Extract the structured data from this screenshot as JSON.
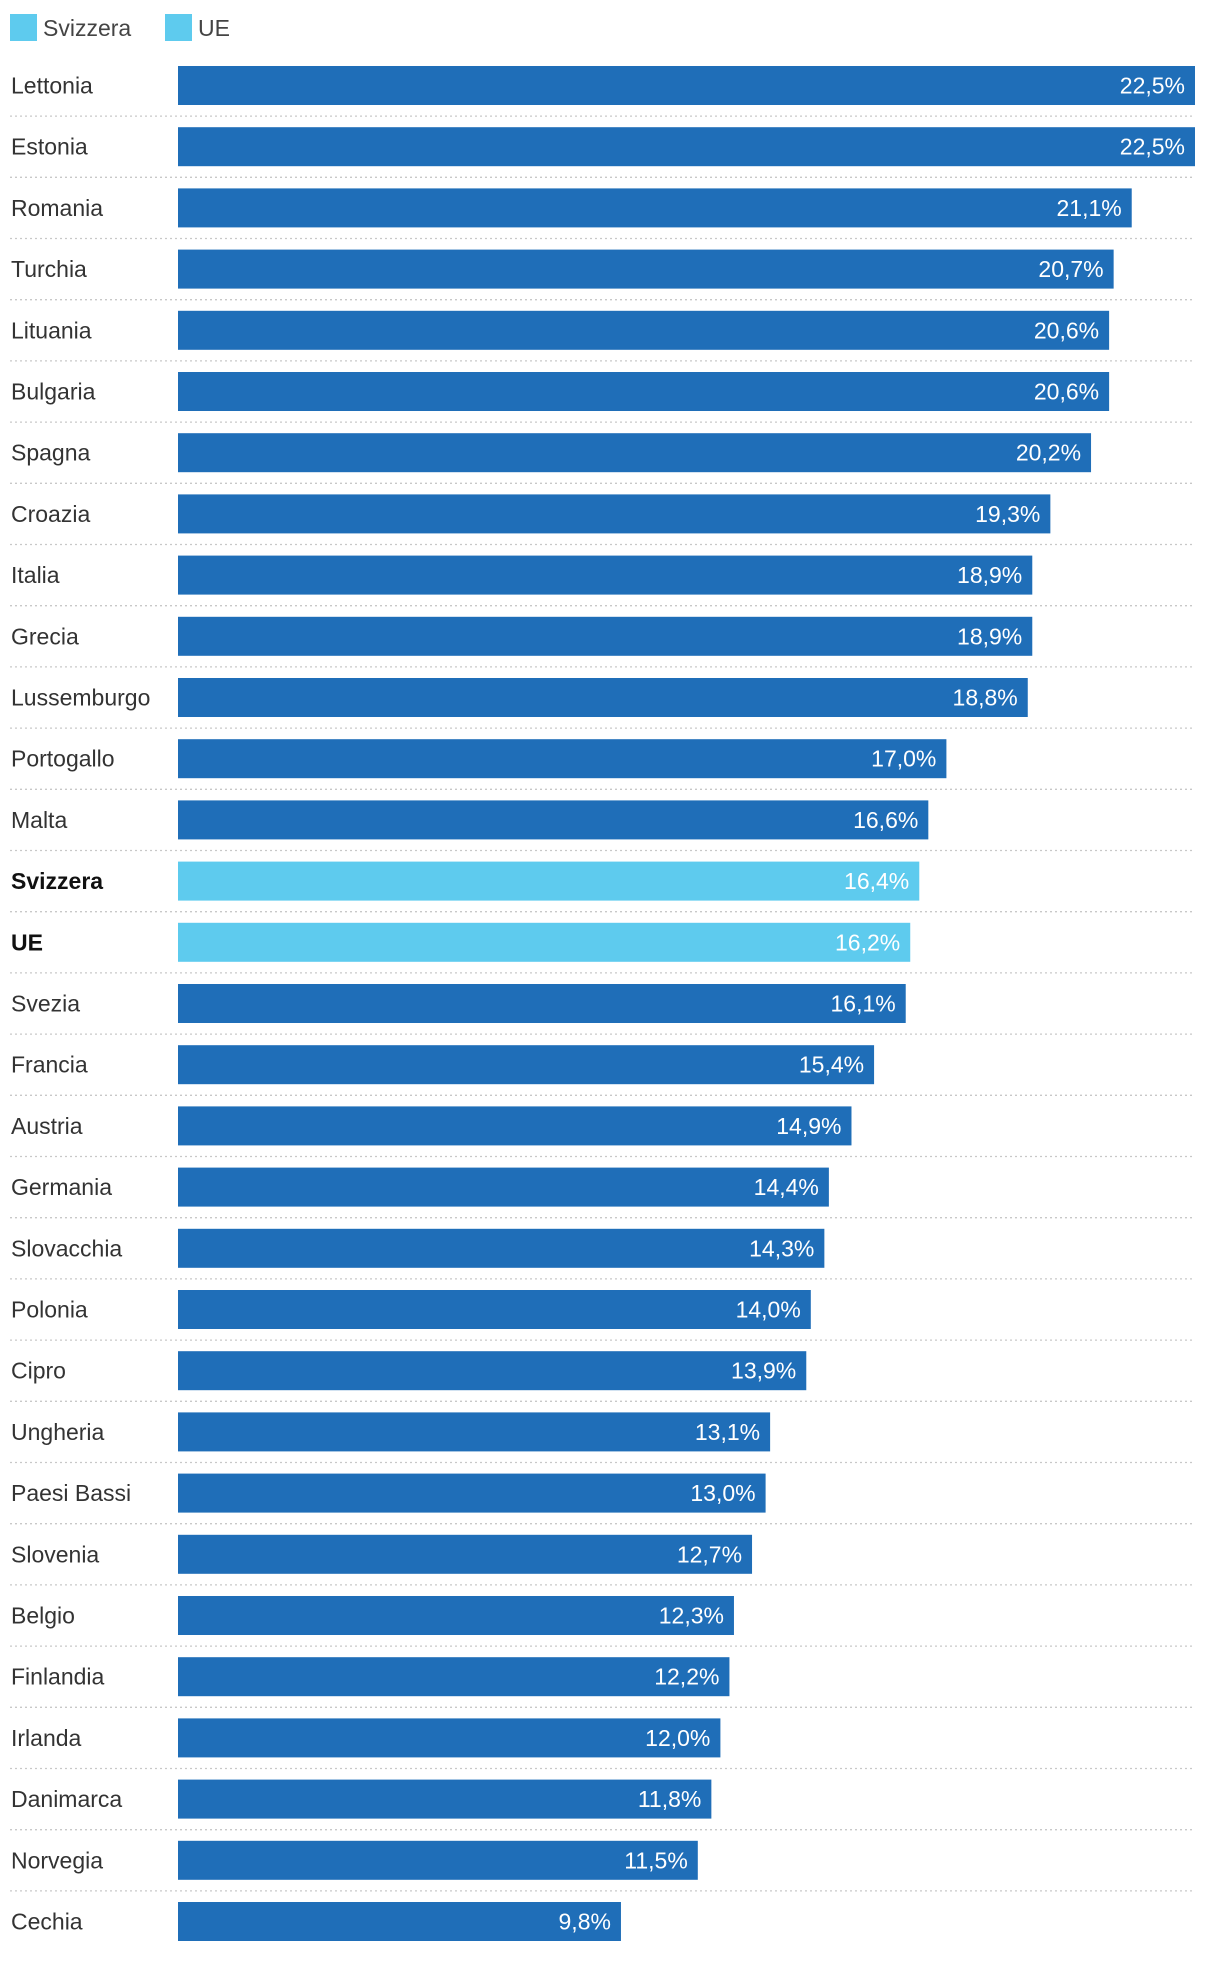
{
  "legend": [
    {
      "label": "Svizzera",
      "color": "#5ecbee"
    },
    {
      "label": "UE",
      "color": "#5ecbee"
    }
  ],
  "colors": {
    "default_bar": "#1f6eb8",
    "highlight_bar": "#5ecbee",
    "value_text": "#ffffff"
  },
  "chart_data": {
    "type": "bar",
    "orientation": "horizontal",
    "categories": [
      "Lettonia",
      "Estonia",
      "Romania",
      "Turchia",
      "Lituania",
      "Bulgaria",
      "Spagna",
      "Croazia",
      "Italia",
      "Grecia",
      "Lussemburgo",
      "Portogallo",
      "Malta",
      "Svizzera",
      "UE",
      "Svezia",
      "Francia",
      "Austria",
      "Germania",
      "Slovacchia",
      "Polonia",
      "Cipro",
      "Ungheria",
      "Paesi Bassi",
      "Slovenia",
      "Belgio",
      "Finlandia",
      "Irlanda",
      "Danimarca",
      "Norvegia",
      "Cechia"
    ],
    "values": [
      22.5,
      22.5,
      21.1,
      20.7,
      20.6,
      20.6,
      20.2,
      19.3,
      18.9,
      18.9,
      18.8,
      17.0,
      16.6,
      16.4,
      16.2,
      16.1,
      15.4,
      14.9,
      14.4,
      14.3,
      14.0,
      13.9,
      13.1,
      13.0,
      12.7,
      12.3,
      12.2,
      12.0,
      11.8,
      11.5,
      9.8
    ],
    "value_labels": [
      "22,5%",
      "22,5%",
      "21,1%",
      "20,7%",
      "20,6%",
      "20,6%",
      "20,2%",
      "19,3%",
      "18,9%",
      "18,9%",
      "18,8%",
      "17,0%",
      "16,6%",
      "16,4%",
      "16,2%",
      "16,1%",
      "15,4%",
      "14,9%",
      "14,4%",
      "14,3%",
      "14,0%",
      "13,9%",
      "13,1%",
      "13,0%",
      "12,7%",
      "12,3%",
      "12,2%",
      "12,0%",
      "11,8%",
      "11,5%",
      "9,8%"
    ],
    "highlighted": [
      "Svizzera",
      "UE"
    ],
    "xlim": [
      0,
      22.5
    ],
    "grid": false,
    "legend_position": "top-left"
  }
}
